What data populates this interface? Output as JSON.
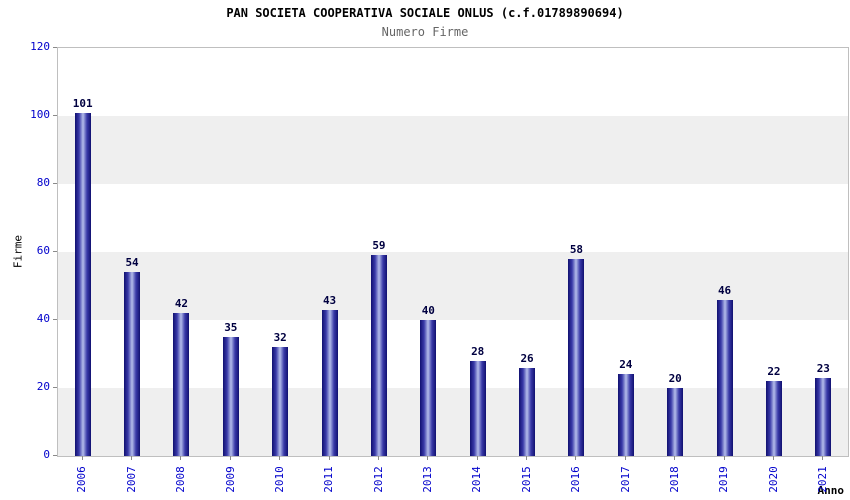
{
  "header": {
    "title": "PAN SOCIETA COOPERATIVA SOCIALE ONLUS (c.f.01789890694)",
    "subtitle": "Numero Firme"
  },
  "chart_data": {
    "type": "bar",
    "title": "PAN SOCIETA COOPERATIVA SOCIALE ONLUS (c.f.01789890694)",
    "subtitle": "Numero Firme",
    "xlabel": "Anno",
    "ylabel": "Firme",
    "categories": [
      "2006",
      "2007",
      "2008",
      "2009",
      "2010",
      "2011",
      "2012",
      "2013",
      "2014",
      "2015",
      "2016",
      "2017",
      "2018",
      "2019",
      "2020",
      "2021"
    ],
    "values": [
      101,
      54,
      42,
      35,
      32,
      43,
      59,
      40,
      28,
      26,
      58,
      24,
      20,
      46,
      22,
      23
    ],
    "ylim": [
      0,
      120
    ],
    "ytick_step": 20,
    "yticks": [
      0,
      20,
      40,
      60,
      80,
      100,
      120
    ],
    "grid": "banded-background",
    "legend": "none",
    "colors": {
      "bar_edge": "#101070",
      "bar_mid": "#3939a8",
      "bar_center": "#b4bdea",
      "tick_label": "#0000cc",
      "value_label": "#000040",
      "band_gray": "#efefef",
      "band_white": "#ffffff",
      "title": "#000000",
      "subtitle": "#666666",
      "plot_border": "#bfbfbf"
    }
  }
}
